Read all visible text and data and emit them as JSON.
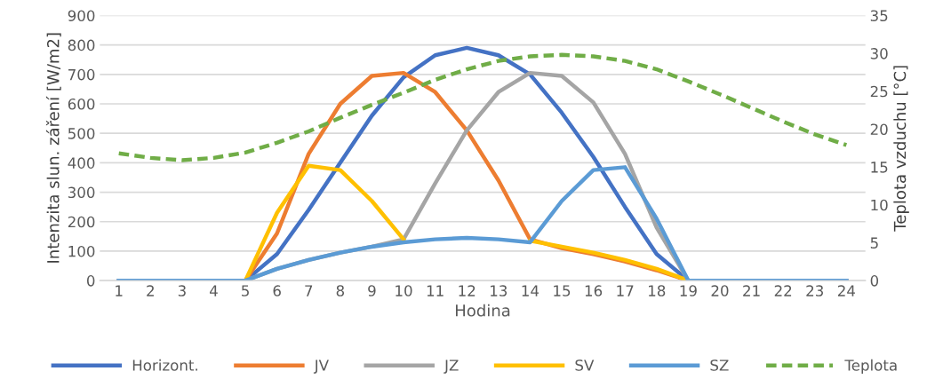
{
  "chart_data": {
    "type": "line",
    "xlabel": "Hodina",
    "ylabel": "Intenzita slun. záření [W/m2]",
    "y2label": "Teplota vzduchu [°C]",
    "categories": [
      "1",
      "2",
      "3",
      "4",
      "5",
      "6",
      "7",
      "8",
      "9",
      "10",
      "11",
      "12",
      "13",
      "14",
      "15",
      "16",
      "17",
      "18",
      "19",
      "20",
      "21",
      "22",
      "23",
      "24"
    ],
    "series": [
      {
        "name": "Horizont.",
        "color": "#4472c4",
        "values": [
          0,
          0,
          0,
          0,
          0,
          90,
          240,
          400,
          560,
          690,
          765,
          790,
          765,
          700,
          570,
          420,
          250,
          90,
          0,
          0,
          0,
          0,
          0,
          0
        ]
      },
      {
        "name": "JV",
        "color": "#ed7d31",
        "values": [
          null,
          null,
          null,
          0,
          0,
          160,
          430,
          600,
          695,
          705,
          640,
          510,
          340,
          140,
          110,
          90,
          65,
          35,
          0,
          0,
          null,
          null,
          null,
          null
        ]
      },
      {
        "name": "JZ",
        "color": "#a5a5a5",
        "values": [
          0,
          0,
          0,
          0,
          0,
          40,
          70,
          95,
          115,
          140,
          330,
          510,
          640,
          705,
          695,
          605,
          430,
          180,
          0,
          0,
          0,
          0,
          0,
          0
        ]
      },
      {
        "name": "SV",
        "color": "#ffc000",
        "values": [
          null,
          null,
          null,
          0,
          0,
          230,
          390,
          375,
          270,
          140,
          null,
          null,
          null,
          135,
          115,
          95,
          70,
          40,
          0,
          0,
          null,
          null,
          null,
          null
        ]
      },
      {
        "name": "SZ",
        "color": "#5b9bd5",
        "values": [
          0,
          0,
          0,
          0,
          0,
          40,
          70,
          95,
          115,
          130,
          140,
          145,
          140,
          130,
          270,
          375,
          385,
          210,
          0,
          0,
          0,
          0,
          0,
          0
        ]
      },
      {
        "name": "Teplota",
        "color": "#70ad47",
        "axis": "y2",
        "line_style": "dashed",
        "values": [
          16.8,
          16.2,
          15.9,
          16.2,
          16.9,
          18.2,
          19.7,
          21.5,
          23.2,
          24.8,
          26.5,
          27.9,
          29.0,
          29.6,
          29.8,
          29.6,
          29.0,
          27.9,
          26.3,
          24.6,
          22.8,
          21.0,
          19.3,
          17.9
        ]
      }
    ],
    "ylim": [
      0,
      900
    ],
    "yticks": [
      0,
      100,
      200,
      300,
      400,
      500,
      600,
      700,
      800,
      900
    ],
    "y2lim": [
      0,
      35
    ],
    "y2ticks": [
      0,
      5,
      10,
      15,
      20,
      25,
      30,
      35
    ],
    "grid": "y",
    "legend": "bottom",
    "line_style": "solid",
    "marker": "none"
  }
}
